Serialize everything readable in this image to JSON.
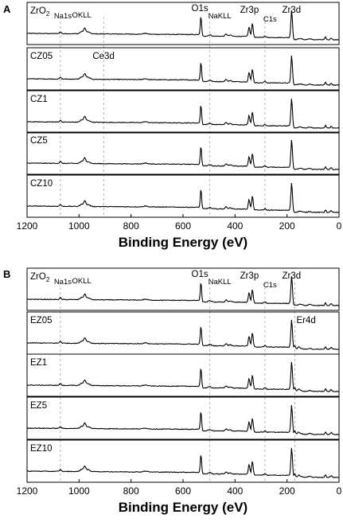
{
  "chart_data": [
    {
      "type": "line",
      "panel": "A",
      "xlabel": "Binding Energy (eV)",
      "xlim": [
        1200,
        0
      ],
      "xticks": [
        1200,
        1000,
        800,
        600,
        400,
        200,
        0
      ],
      "xtick_labels": [
        "1200",
        "1000",
        "800",
        "600",
        "400",
        "200",
        "0"
      ],
      "series": [
        {
          "label_parts": [
            "ZrO",
            "2"
          ],
          "name": "ZrO2",
          "er4d": false
        },
        {
          "label_parts": [
            "CZ05"
          ],
          "name": "CZ05",
          "er4d": false
        },
        {
          "label_parts": [
            "CZ1"
          ],
          "name": "CZ1",
          "er4d": false
        },
        {
          "label_parts": [
            "CZ5"
          ],
          "name": "CZ5",
          "er4d": false
        },
        {
          "label_parts": [
            "CZ10"
          ],
          "name": "CZ10",
          "er4d": false
        }
      ],
      "reference_lines_ev": [
        1072,
        905,
        497,
        285
      ],
      "annotations": [
        {
          "text": "Na1s",
          "x": 1072,
          "row": 0,
          "size": "small"
        },
        {
          "text": "OKLL",
          "x": 978,
          "row": 0,
          "size": "small"
        },
        {
          "text": "O1s",
          "x": 531,
          "row": 0,
          "size": "large"
        },
        {
          "text": "NaKLL",
          "x": 497,
          "row": 0,
          "size": "small"
        },
        {
          "text": "Zr3p",
          "x": 338,
          "row": 0,
          "size": "large"
        },
        {
          "text": "C1s",
          "x": 285,
          "row": 0,
          "size": "small"
        },
        {
          "text": "Zr3d",
          "x": 182,
          "row": 0,
          "size": "large"
        },
        {
          "text": "Ce3d",
          "x": 905,
          "row": 1,
          "size": "large"
        }
      ]
    },
    {
      "type": "line",
      "panel": "B",
      "xlabel": "Binding Energy (eV)",
      "xlim": [
        1200,
        0
      ],
      "xticks": [
        1200,
        1000,
        800,
        600,
        400,
        200,
        0
      ],
      "xtick_labels": [
        "1200",
        "1000",
        "800",
        "600",
        "400",
        "200",
        "0"
      ],
      "series": [
        {
          "label_parts": [
            "ZrO",
            "2"
          ],
          "name": "ZrO2",
          "er4d": false
        },
        {
          "label_parts": [
            "EZ05"
          ],
          "name": "EZ05",
          "er4d": true
        },
        {
          "label_parts": [
            "EZ1"
          ],
          "name": "EZ1",
          "er4d": true
        },
        {
          "label_parts": [
            "EZ5"
          ],
          "name": "EZ5",
          "er4d": true
        },
        {
          "label_parts": [
            "EZ10"
          ],
          "name": "EZ10",
          "er4d": true
        }
      ],
      "reference_lines_ev": [
        1072,
        497,
        285,
        170
      ],
      "annotations": [
        {
          "text": "Na1s",
          "x": 1072,
          "row": 0,
          "size": "small"
        },
        {
          "text": "OKLL",
          "x": 978,
          "row": 0,
          "size": "small"
        },
        {
          "text": "O1s",
          "x": 531,
          "row": 0,
          "size": "large"
        },
        {
          "text": "NaKLL",
          "x": 497,
          "row": 0,
          "size": "small"
        },
        {
          "text": "Zr3p",
          "x": 338,
          "row": 0,
          "size": "large"
        },
        {
          "text": "C1s",
          "x": 285,
          "row": 0,
          "size": "small"
        },
        {
          "text": "Zr3d",
          "x": 182,
          "row": 0,
          "size": "large"
        },
        {
          "text": "Er4d",
          "x": 170,
          "row": 1,
          "size": "large"
        }
      ]
    }
  ]
}
